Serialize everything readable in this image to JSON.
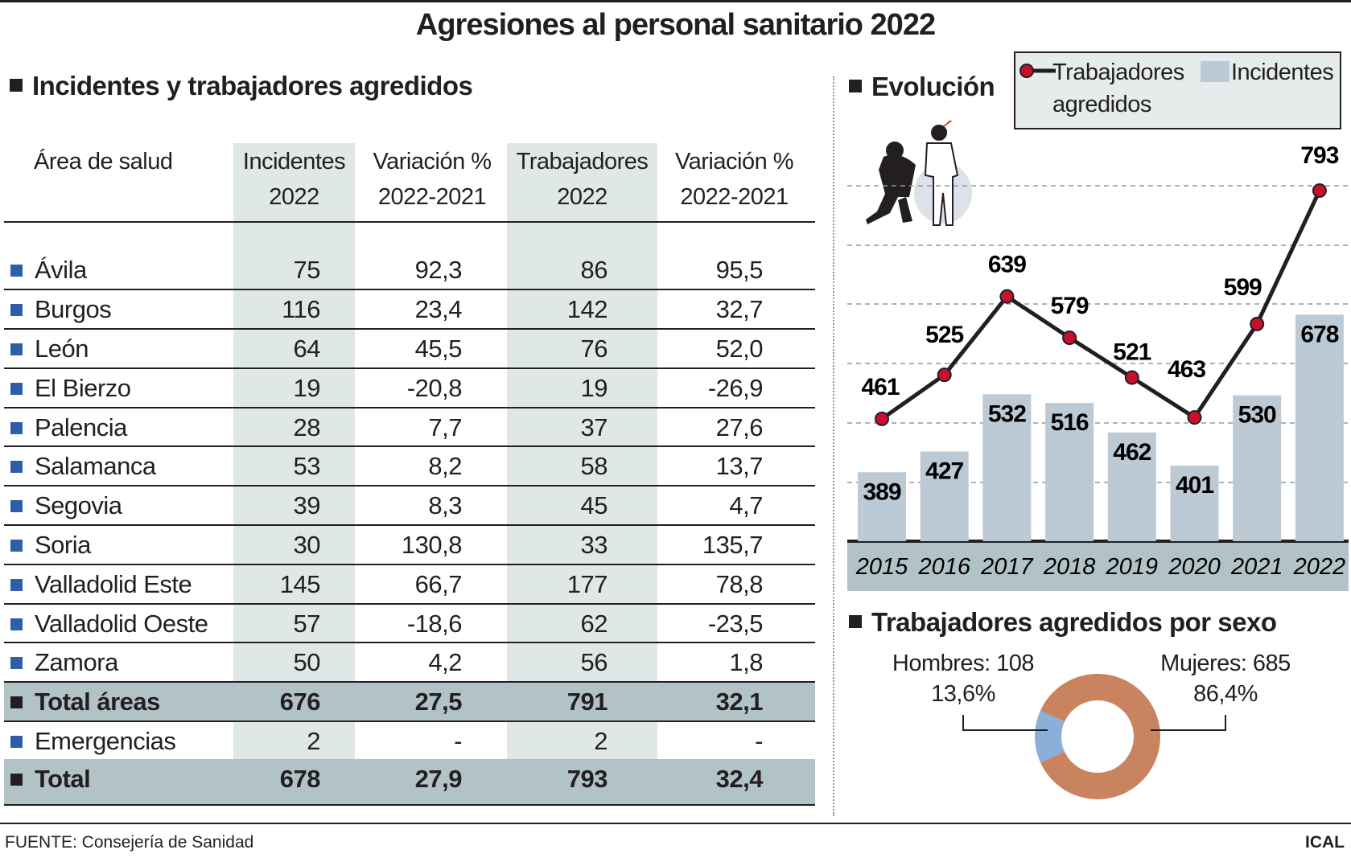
{
  "title": "Agresiones al personal sanitario 2022",
  "table": {
    "section_title": "Incidentes y trabajadores agredidos",
    "headers": {
      "area": "Área de salud",
      "inc": [
        "Incidentes",
        "2022"
      ],
      "var1": [
        "Variación %",
        "2022-2021"
      ],
      "trab": [
        "Trabajadores",
        "2022"
      ],
      "var2": [
        "Variación %",
        "2022-2021"
      ]
    },
    "rows": [
      {
        "area": "Ávila",
        "inc": "75",
        "var1": "92,3",
        "trab": "86",
        "var2": "95,5"
      },
      {
        "area": "Burgos",
        "inc": "116",
        "var1": "23,4",
        "trab": "142",
        "var2": "32,7"
      },
      {
        "area": "León",
        "inc": "64",
        "var1": "45,5",
        "trab": "76",
        "var2": "52,0"
      },
      {
        "area": "El Bierzo",
        "inc": "19",
        "var1": "-20,8",
        "trab": "19",
        "var2": "-26,9"
      },
      {
        "area": "Palencia",
        "inc": "28",
        "var1": "7,7",
        "trab": "37",
        "var2": "27,6"
      },
      {
        "area": "Salamanca",
        "inc": "53",
        "var1": "8,2",
        "trab": "58",
        "var2": "13,7"
      },
      {
        "area": "Segovia",
        "inc": "39",
        "var1": "8,3",
        "trab": "45",
        "var2": "4,7"
      },
      {
        "area": "Soria",
        "inc": "30",
        "var1": "130,8",
        "trab": "33",
        "var2": "135,7"
      },
      {
        "area": "Valladolid Este",
        "inc": "145",
        "var1": "66,7",
        "trab": "177",
        "var2": "78,8"
      },
      {
        "area": "Valladolid Oeste",
        "inc": "57",
        "var1": "-18,6",
        "trab": "62",
        "var2": "-23,5"
      },
      {
        "area": "Zamora",
        "inc": "50",
        "var1": "4,2",
        "trab": "56",
        "var2": "1,8"
      },
      {
        "area": "Total áreas",
        "inc": "676",
        "var1": "27,5",
        "trab": "791",
        "var2": "32,1",
        "bold": true
      },
      {
        "area": "Emergencias",
        "inc": "2",
        "var1": "-",
        "trab": "2",
        "var2": "-"
      },
      {
        "area": "Total",
        "inc": "678",
        "var1": "27,9",
        "trab": "793",
        "var2": "32,4",
        "bold": true
      }
    ]
  },
  "chart_data": [
    {
      "type": "bar+line",
      "title": "Evolución",
      "categories": [
        "2015",
        "2016",
        "2017",
        "2018",
        "2019",
        "2020",
        "2021",
        "2022"
      ],
      "series": [
        {
          "name": "Incidentes",
          "type": "bar",
          "values": [
            389,
            427,
            532,
            516,
            462,
            401,
            530,
            678
          ],
          "color": "#bccad6"
        },
        {
          "name": "Trabajadores agredidos",
          "type": "line",
          "values": [
            461,
            525,
            639,
            579,
            521,
            463,
            599,
            793
          ],
          "color": "#231f20",
          "marker_color": "#c8102e"
        }
      ],
      "legend": {
        "line_label": "Trabajadores agredidos",
        "line_label_parts": [
          "Trabajadores",
          "agredidos"
        ],
        "bar_label": "Incidentes",
        "placement": "top-right"
      },
      "grid": true
    },
    {
      "type": "pie",
      "title": "Trabajadores agredidos por sexo",
      "slices": [
        {
          "label": "Hombres: 108",
          "value": 108,
          "percent_label": "13,6%",
          "color": "#8aafd8"
        },
        {
          "label": "Mujeres: 685",
          "value": 685,
          "percent_label": "86,4%",
          "color": "#c9845f"
        }
      ]
    }
  ],
  "footer": {
    "source": "FUENTE: Consejería de Sanidad",
    "credit": "ICAL"
  }
}
